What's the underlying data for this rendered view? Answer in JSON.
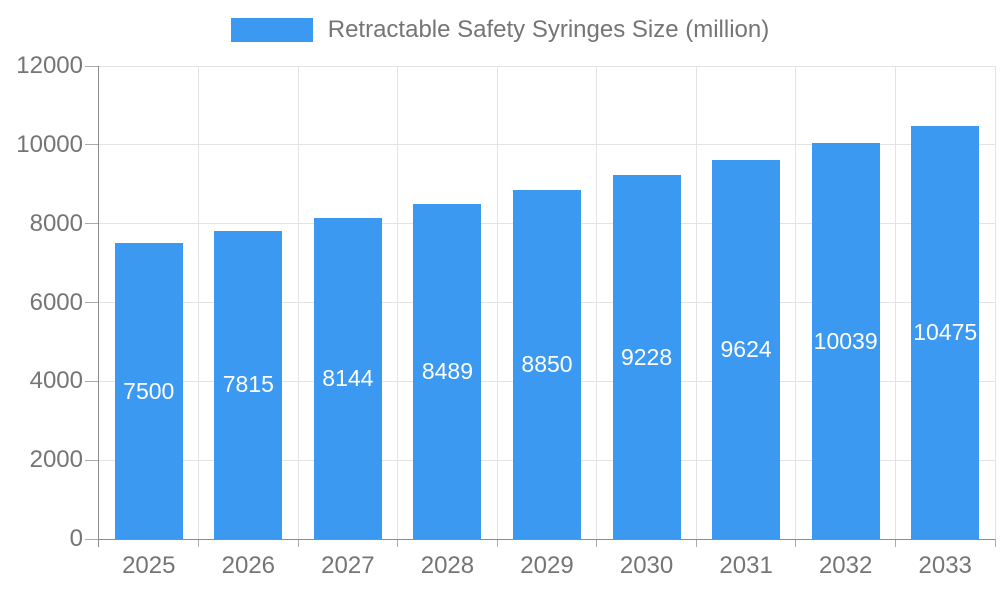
{
  "chart_data": {
    "type": "bar",
    "title": "",
    "legend_label": "Retractable Safety Syringes Size (million)",
    "legend_position": "top-center",
    "categories": [
      "2025",
      "2026",
      "2027",
      "2028",
      "2029",
      "2030",
      "2031",
      "2032",
      "2033"
    ],
    "series": [
      {
        "name": "Retractable Safety Syringes Size (million)",
        "values": [
          7500,
          7815,
          8144,
          8489,
          8850,
          9228,
          9624,
          10039,
          10475
        ]
      }
    ],
    "bar_value_labels": [
      "7500",
      "7815",
      "8144",
      "8489",
      "8850",
      "9228",
      "9624",
      "10039",
      "10475"
    ],
    "xlabel": "",
    "ylabel": "",
    "ylim": [
      0,
      12000
    ],
    "yticks": [
      0,
      2000,
      4000,
      6000,
      8000,
      10000,
      12000
    ],
    "grid": true,
    "colors": {
      "bar": "#3b99f2",
      "bar_label": "#ffffff",
      "axis_line": "#8c8c8c",
      "grid_line": "#e3e3e3",
      "tick_line": "#ababab",
      "axis_label": "#757575",
      "legend_text": "#757575",
      "background": "#ffffff"
    }
  }
}
